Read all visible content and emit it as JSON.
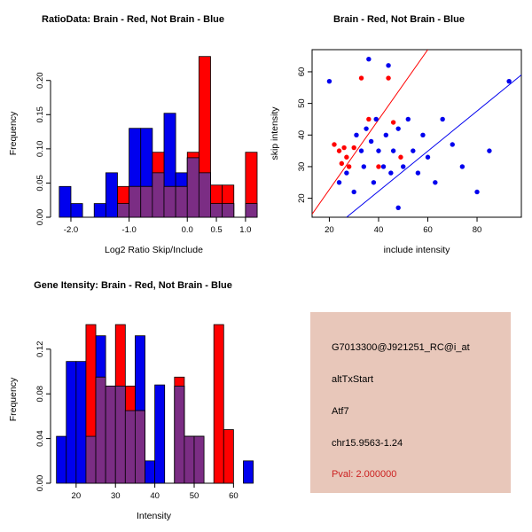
{
  "window": {
    "background": "#FFFFFF"
  },
  "colors": {
    "brain": "#FF0000",
    "not_brain": "#0000EE",
    "overlap": "#7B2D84",
    "axis": "#000000",
    "info_bg": "#E8C7BA",
    "pval_red": "#CC2222",
    "text_black": "#000000"
  },
  "chart_data": [
    {
      "type": "bar",
      "variant": "overlaid-histogram",
      "title": "RatioData: Brain - Red, Not Brain - Blue",
      "xlabel": "Log2 Ratio Skip/Include",
      "ylabel": "Frequency",
      "xlim": [
        -2.35,
        1.2
      ],
      "ylim": [
        0,
        0.245
      ],
      "xticks": [
        -2.0,
        -1.0,
        0.0,
        0.5,
        1.0
      ],
      "xtick_labels": [
        "-2.0",
        "-1.0",
        "0.0",
        "0.5",
        "1.0"
      ],
      "yticks": [
        0,
        0.05,
        0.1,
        0.15,
        0.2
      ],
      "ytick_labels": [
        "0.00",
        "0.05",
        "0.10",
        "0.15",
        "0.20"
      ],
      "bin_width": 0.2,
      "grid": false,
      "series": [
        {
          "name": "Not Brain",
          "color_key": "not_brain",
          "bins": [
            [
              -2.2,
              0.045
            ],
            [
              -2.0,
              0.02
            ],
            [
              -1.6,
              0.02
            ],
            [
              -1.4,
              0.065
            ],
            [
              -1.2,
              0.02
            ],
            [
              -1.0,
              0.13
            ],
            [
              -0.8,
              0.13
            ],
            [
              -0.6,
              0.065
            ],
            [
              -0.4,
              0.152
            ],
            [
              -0.2,
              0.065
            ],
            [
              0.0,
              0.087
            ],
            [
              0.2,
              0.065
            ],
            [
              0.4,
              0.02
            ],
            [
              0.6,
              0.02
            ],
            [
              1.0,
              0.02
            ]
          ]
        },
        {
          "name": "Brain",
          "color_key": "brain",
          "bins": [
            [
              -1.2,
              0.045
            ],
            [
              -1.0,
              0.045
            ],
            [
              -0.8,
              0.045
            ],
            [
              -0.6,
              0.095
            ],
            [
              -0.4,
              0.045
            ],
            [
              -0.2,
              0.045
            ],
            [
              0.0,
              0.095
            ],
            [
              0.2,
              0.235
            ],
            [
              0.4,
              0.047
            ],
            [
              0.6,
              0.047
            ],
            [
              1.0,
              0.095
            ]
          ]
        }
      ]
    },
    {
      "type": "scatter",
      "title": "Brain - Red, Not Brain - Blue",
      "xlabel": "include intensity",
      "ylabel": "skip intensity",
      "xlim": [
        13,
        98
      ],
      "ylim": [
        14,
        67
      ],
      "xticks": [
        20,
        40,
        60,
        80
      ],
      "xtick_labels": [
        "20",
        "40",
        "60",
        "80"
      ],
      "yticks": [
        20,
        30,
        40,
        50,
        60
      ],
      "ytick_labels": [
        "20",
        "30",
        "40",
        "50",
        "60"
      ],
      "grid": false,
      "series": [
        {
          "name": "Brain",
          "color_key": "brain",
          "points": [
            [
              22,
              37
            ],
            [
              24,
              35
            ],
            [
              25,
              31
            ],
            [
              26,
              36
            ],
            [
              27,
              33
            ],
            [
              28,
              30
            ],
            [
              30,
              36
            ],
            [
              33,
              58
            ],
            [
              36,
              45
            ],
            [
              40,
              30
            ],
            [
              44,
              58
            ],
            [
              46,
              44
            ],
            [
              49,
              33
            ]
          ]
        },
        {
          "name": "Not Brain",
          "color_key": "not_brain",
          "points": [
            [
              20,
              57
            ],
            [
              24,
              25
            ],
            [
              27,
              28
            ],
            [
              30,
              22
            ],
            [
              31,
              40
            ],
            [
              33,
              35
            ],
            [
              34,
              30
            ],
            [
              35,
              42
            ],
            [
              36,
              64
            ],
            [
              37,
              38
            ],
            [
              38,
              25
            ],
            [
              39,
              45
            ],
            [
              40,
              35
            ],
            [
              42,
              30
            ],
            [
              43,
              40
            ],
            [
              44,
              62
            ],
            [
              45,
              28
            ],
            [
              46,
              35
            ],
            [
              48,
              17
            ],
            [
              48,
              42
            ],
            [
              50,
              30
            ],
            [
              52,
              45
            ],
            [
              54,
              35
            ],
            [
              56,
              28
            ],
            [
              58,
              40
            ],
            [
              60,
              33
            ],
            [
              63,
              25
            ],
            [
              66,
              45
            ],
            [
              70,
              37
            ],
            [
              74,
              30
            ],
            [
              80,
              22
            ],
            [
              85,
              35
            ],
            [
              93,
              57
            ]
          ]
        }
      ],
      "lines": [
        {
          "name": "brain-fit-line",
          "color_key": "brain",
          "from": [
            13,
            15
          ],
          "to": [
            60,
            67
          ]
        },
        {
          "name": "not-brain-fit-line",
          "color_key": "not_brain",
          "from": [
            27,
            14
          ],
          "to": [
            98,
            59
          ]
        }
      ]
    },
    {
      "type": "bar",
      "variant": "overlaid-histogram",
      "title": "Gene Itensity: Brain - Red, Not Brain - Blue",
      "xlabel": "Intensity",
      "ylabel": "Frequency",
      "xlim": [
        13.5,
        66
      ],
      "ylim": [
        0,
        0.15
      ],
      "xticks": [
        20,
        30,
        40,
        50,
        60
      ],
      "xtick_labels": [
        "20",
        "30",
        "40",
        "50",
        "60"
      ],
      "yticks": [
        0,
        0.04,
        0.08,
        0.12
      ],
      "ytick_labels": [
        "0.00",
        "0.04",
        "0.08",
        "0.12"
      ],
      "bin_width": 2.5,
      "grid": false,
      "series": [
        {
          "name": "Not Brain",
          "color_key": "not_brain",
          "bins": [
            [
              15,
              0.042
            ],
            [
              17.5,
              0.109
            ],
            [
              20,
              0.109
            ],
            [
              22.5,
              0.042
            ],
            [
              25,
              0.132
            ],
            [
              27.5,
              0.087
            ],
            [
              30,
              0.087
            ],
            [
              32.5,
              0.065
            ],
            [
              35,
              0.132
            ],
            [
              37.5,
              0.02
            ],
            [
              40,
              0.088
            ],
            [
              45,
              0.087
            ],
            [
              47.5,
              0.042
            ],
            [
              50,
              0.042
            ],
            [
              62.5,
              0.02
            ]
          ]
        },
        {
          "name": "Brain",
          "color_key": "brain",
          "bins": [
            [
              22.5,
              0.142
            ],
            [
              25,
              0.095
            ],
            [
              27.5,
              0.087
            ],
            [
              30,
              0.142
            ],
            [
              32.5,
              0.087
            ],
            [
              35,
              0.065
            ],
            [
              45,
              0.095
            ],
            [
              47.5,
              0.042
            ],
            [
              50,
              0.042
            ],
            [
              55,
              0.142
            ],
            [
              57.5,
              0.048
            ]
          ]
        }
      ]
    }
  ],
  "info_box": {
    "lines": [
      {
        "text": "G7013300@J921251_RC@i_at",
        "color": "#000000"
      },
      {
        "text": "altTxStart",
        "color": "#000000"
      },
      {
        "text": "Atf7",
        "color": "#000000"
      },
      {
        "text": "chr15.9563-1.24",
        "color": "#000000"
      },
      {
        "text": "Pval: 2.000000",
        "color": "#CC2222"
      }
    ]
  }
}
